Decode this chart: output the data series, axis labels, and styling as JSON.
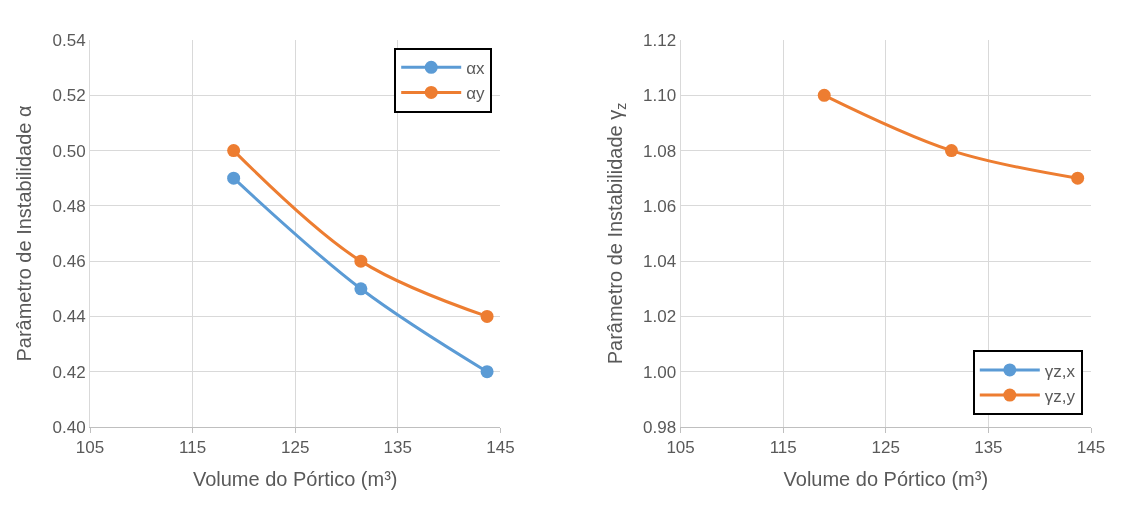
{
  "chart_data": [
    {
      "type": "line",
      "xlabel": "Volume do Pórtico (m³)",
      "ylabel": "Parâmetro de Instabilidade α",
      "x": [
        119.0,
        131.4,
        143.7
      ],
      "xlim": [
        105,
        145
      ],
      "xticks": [
        105,
        115,
        125,
        135,
        145
      ],
      "ylim": [
        0.4,
        0.54
      ],
      "yticks": [
        {
          "value": 0.4,
          "label": "0.40"
        },
        {
          "value": 0.42,
          "label": "0.42"
        },
        {
          "value": 0.44,
          "label": "0.44"
        },
        {
          "value": 0.46,
          "label": "0.46"
        },
        {
          "value": 0.48,
          "label": "0.48"
        },
        {
          "value": 0.5,
          "label": "0.50"
        },
        {
          "value": 0.52,
          "label": "0.52"
        },
        {
          "value": 0.54,
          "label": "0.54"
        }
      ],
      "grid": true,
      "legend": "top right",
      "marker": "circle",
      "line_style": "solid",
      "series": [
        {
          "name": "αx",
          "color": "#5b9bd5",
          "values": [
            0.49,
            0.45,
            0.42
          ]
        },
        {
          "name": "αy",
          "color": "#ed7d31",
          "values": [
            0.5,
            0.46,
            0.44
          ]
        }
      ]
    },
    {
      "type": "line",
      "xlabel": "Volume do Pórtico (m³)",
      "ylabel": "Parâmetro de Instabilidade γ$_{z}$",
      "x": [
        119.0,
        131.4,
        143.7
      ],
      "xlim": [
        105,
        145
      ],
      "xticks": [
        105,
        115,
        125,
        135,
        145
      ],
      "ylim": [
        0.98,
        1.12
      ],
      "yticks": [
        {
          "value": 0.98,
          "label": "0.98"
        },
        {
          "value": 1.0,
          "label": "1.00"
        },
        {
          "value": 1.02,
          "label": "1.02"
        },
        {
          "value": 1.04,
          "label": "1.04"
        },
        {
          "value": 1.06,
          "label": "1.06"
        },
        {
          "value": 1.08,
          "label": "1.08"
        },
        {
          "value": 1.1,
          "label": "1.10"
        },
        {
          "value": 1.12,
          "label": "1.12"
        }
      ],
      "grid": true,
      "legend": "bottom right",
      "marker": "circle",
      "line_style": "solid",
      "series": [
        {
          "name": "γz,x",
          "color": "#5b9bd5",
          "values": [
            null,
            null,
            null
          ]
        },
        {
          "name": "γz,y",
          "color": "#ed7d31",
          "values": [
            1.1,
            1.08,
            1.07
          ]
        }
      ]
    }
  ]
}
